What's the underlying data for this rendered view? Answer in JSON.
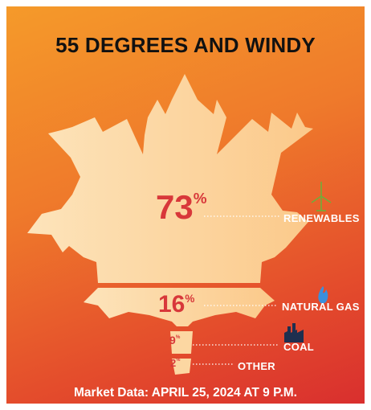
{
  "title": "55 DEGREES AND WINDY",
  "footer": "Market Data: APRIL 25, 2024 AT 9 P.M.",
  "colors": {
    "background_top": "#f59a2a",
    "background_bottom": "#d92f2e",
    "leaf": "#fcd9a6",
    "percent_text": "#d8383a",
    "label_text": "#ffffff",
    "wind_turbine": "#6fae3a",
    "flame": "#3b8fdc",
    "factory": "#1f2f4f"
  },
  "icons": {
    "renewables": "wind-turbine-icon",
    "natural_gas": "flame-icon",
    "coal": "factory-icon"
  },
  "chart_data": {
    "type": "pie",
    "title": "55 DEGREES AND WINDY",
    "unit": "%",
    "categories": [
      "RENEWABLES",
      "NATURAL GAS",
      "COAL",
      "OTHER"
    ],
    "values": [
      73,
      16,
      9,
      2
    ],
    "labels": [
      "73",
      "16",
      "9",
      "2"
    ]
  }
}
